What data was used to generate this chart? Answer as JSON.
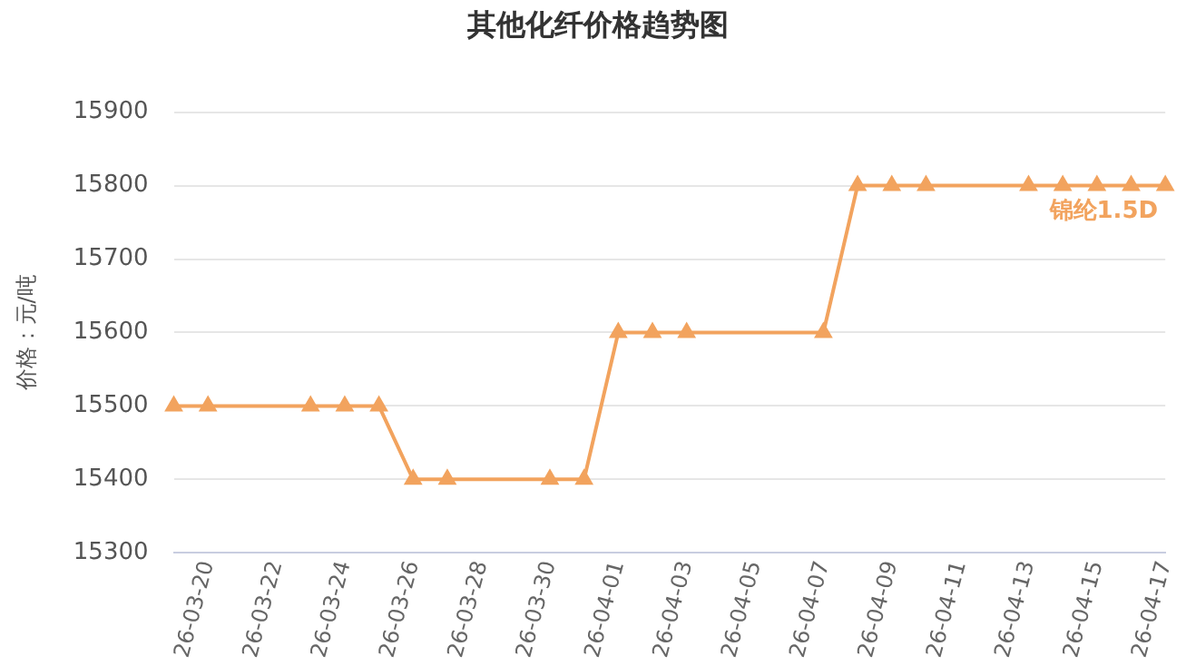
{
  "chart_data": {
    "type": "line",
    "title": "其他化纤价格趋势图",
    "ylabel": "价格：元/吨",
    "x": [
      "--03-19",
      "--03-20",
      "--03-23",
      "--03-24",
      "--03-25",
      "--03-26",
      "--03-27",
      "--03-30",
      "--03-31",
      "--04-01",
      "--04-02",
      "--04-03",
      "--04-07",
      "--04-08",
      "--04-09",
      "--04-10",
      "--04-13",
      "--04-14",
      "--04-15",
      "--04-16",
      "--04-17"
    ],
    "series": [
      {
        "name": "锦纶1.5D",
        "color": "#f2a35e",
        "values": [
          15500,
          15500,
          15500,
          15500,
          15500,
          15400,
          15400,
          15400,
          15400,
          15600,
          15600,
          15600,
          15600,
          15800,
          15800,
          15800,
          15800,
          15800,
          15800,
          15800,
          15800
        ]
      }
    ],
    "xlim": [
      "--03-19",
      "--04-17"
    ],
    "xticks": [
      {
        "value": "--03-20",
        "label": "26-03-20"
      },
      {
        "value": "--03-22",
        "label": "26-03-22"
      },
      {
        "value": "--03-24",
        "label": "26-03-24"
      },
      {
        "value": "--03-26",
        "label": "26-03-26"
      },
      {
        "value": "--03-28",
        "label": "26-03-28"
      },
      {
        "value": "--03-30",
        "label": "26-03-30"
      },
      {
        "value": "--04-01",
        "label": "26-04-01"
      },
      {
        "value": "--04-03",
        "label": "26-04-03"
      },
      {
        "value": "--04-05",
        "label": "26-04-05"
      },
      {
        "value": "--04-07",
        "label": "26-04-07"
      },
      {
        "value": "--04-09",
        "label": "26-04-09"
      },
      {
        "value": "--04-11",
        "label": "26-04-11"
      },
      {
        "value": "--04-13",
        "label": "26-04-13"
      },
      {
        "value": "--04-15",
        "label": "26-04-15"
      },
      {
        "value": "--04-17",
        "label": "26-04-17"
      }
    ],
    "ylim": [
      15300,
      15900
    ],
    "yticks": [
      15300,
      15400,
      15500,
      15600,
      15700,
      15800,
      15900
    ],
    "grid": "y",
    "legend": false,
    "marker": "triangle",
    "line_style": "solid"
  }
}
